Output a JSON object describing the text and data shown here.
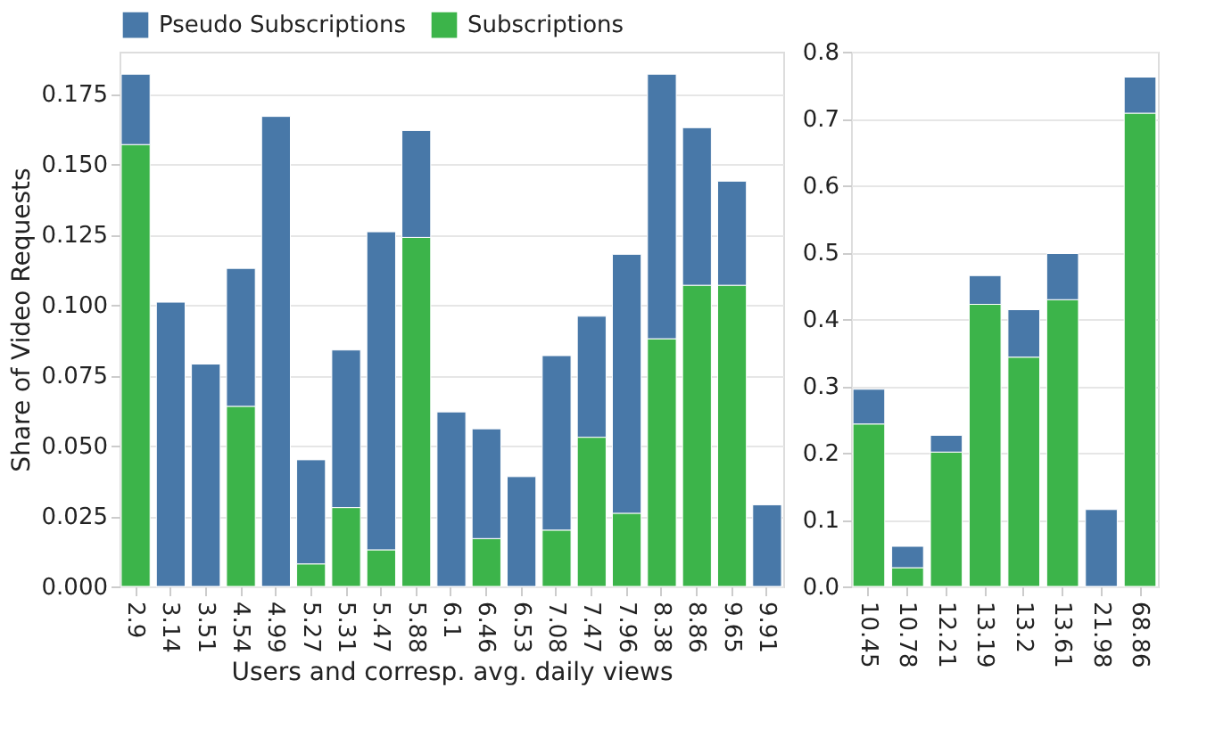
{
  "chart_data": [
    {
      "type": "bar",
      "stacked": true,
      "xlabel": "Users and corresp. avg. daily views",
      "ylabel": "Share of Video Requests",
      "categories": [
        "2.9",
        "3.14",
        "3.51",
        "4.54",
        "4.99",
        "5.27",
        "5.31",
        "5.47",
        "5.88",
        "6.1",
        "6.46",
        "6.53",
        "7.08",
        "7.47",
        "7.96",
        "8.38",
        "8.86",
        "9.65",
        "9.91"
      ],
      "series": [
        {
          "name": "Subscriptions",
          "color": "#3cb44a",
          "values": [
            0.157,
            0,
            0,
            0.064,
            0,
            0.008,
            0.028,
            0.013,
            0.124,
            0,
            0.017,
            0,
            0.02,
            0.053,
            0.026,
            0.088,
            0.107,
            0.107,
            0
          ]
        },
        {
          "name": "Pseudo Subscriptions",
          "color": "#4878a8",
          "values": [
            0.025,
            0.101,
            0.079,
            0.049,
            0.167,
            0.037,
            0.056,
            0.113,
            0.038,
            0.062,
            0.039,
            0.039,
            0.062,
            0.043,
            0.092,
            0.094,
            0.056,
            0.037,
            0.029
          ]
        }
      ],
      "ylim": [
        0,
        0.19
      ],
      "yticks": [
        {
          "value": 0,
          "label": "0.000"
        },
        {
          "value": 0.025,
          "label": "0.025"
        },
        {
          "value": 0.05,
          "label": "0.050"
        },
        {
          "value": 0.075,
          "label": "0.075"
        },
        {
          "value": 0.1,
          "label": "0.100"
        },
        {
          "value": 0.125,
          "label": "0.125"
        },
        {
          "value": 0.15,
          "label": "0.150"
        },
        {
          "value": 0.175,
          "label": "0.175"
        }
      ],
      "grid": "y",
      "legend": "top"
    },
    {
      "type": "bar",
      "stacked": true,
      "categories": [
        "10.45",
        "10.78",
        "12.21",
        "13.19",
        "13.2",
        "13.61",
        "21.98",
        "68.86"
      ],
      "series": [
        {
          "color": "#3cb44a",
          "values": [
            0.243,
            0.028,
            0.201,
            0.422,
            0.343,
            0.429,
            0,
            0.708
          ]
        },
        {
          "color": "#4878a8",
          "values": [
            0.052,
            0.032,
            0.025,
            0.043,
            0.071,
            0.069,
            0.115,
            0.054
          ]
        }
      ],
      "ylim": [
        0,
        0.8
      ],
      "yticks": [
        {
          "value": 0,
          "label": "0.0"
        },
        {
          "value": 0.1,
          "label": "0.1"
        },
        {
          "value": 0.2,
          "label": "0.2"
        },
        {
          "value": 0.3,
          "label": "0.3"
        },
        {
          "value": 0.4,
          "label": "0.4"
        },
        {
          "value": 0.5,
          "label": "0.5"
        },
        {
          "value": 0.6,
          "label": "0.6"
        },
        {
          "value": 0.7,
          "label": "0.7"
        },
        {
          "value": 0.8,
          "label": "0.8"
        }
      ],
      "grid": "y"
    }
  ]
}
